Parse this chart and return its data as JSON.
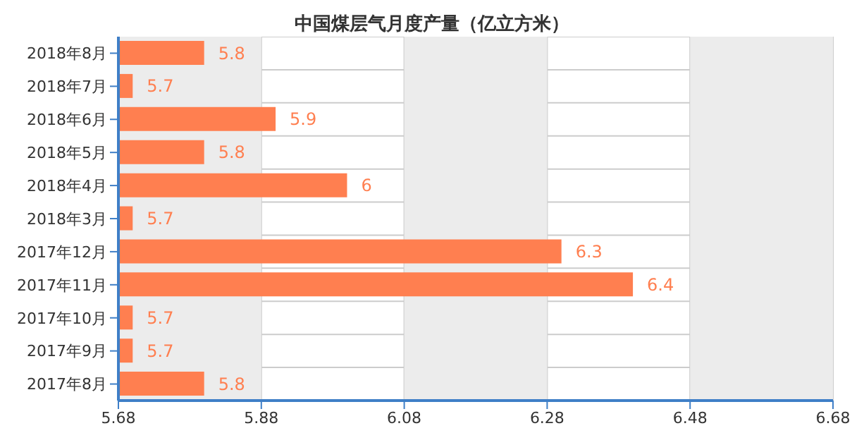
{
  "chart_data": {
    "type": "bar",
    "orientation": "horizontal",
    "title": "中国煤层气月度产量（亿立方米）",
    "categories": [
      "2018年8月",
      "2018年7月",
      "2018年6月",
      "2018年5月",
      "2018年4月",
      "2018年3月",
      "2017年12月",
      "2017年11月",
      "2017年10月",
      "2017年9月",
      "2017年8月"
    ],
    "values": [
      5.8,
      5.7,
      5.9,
      5.8,
      6,
      5.7,
      6.3,
      6.4,
      5.7,
      5.7,
      5.8
    ],
    "color": "#ff7f50",
    "data_labels": true,
    "xlim": [
      5.68,
      6.68
    ],
    "xticks": [
      5.68,
      5.88,
      6.08,
      6.28,
      6.48,
      6.68
    ],
    "grid": true,
    "bands": [
      {
        "axis": "x",
        "from": 5.68,
        "to": 5.88,
        "color": "#ececec"
      },
      {
        "axis": "x",
        "from": 6.08,
        "to": 6.28,
        "color": "#ececec"
      },
      {
        "axis": "x",
        "from": 6.48,
        "to": 6.68,
        "color": "#ececec"
      }
    ]
  }
}
